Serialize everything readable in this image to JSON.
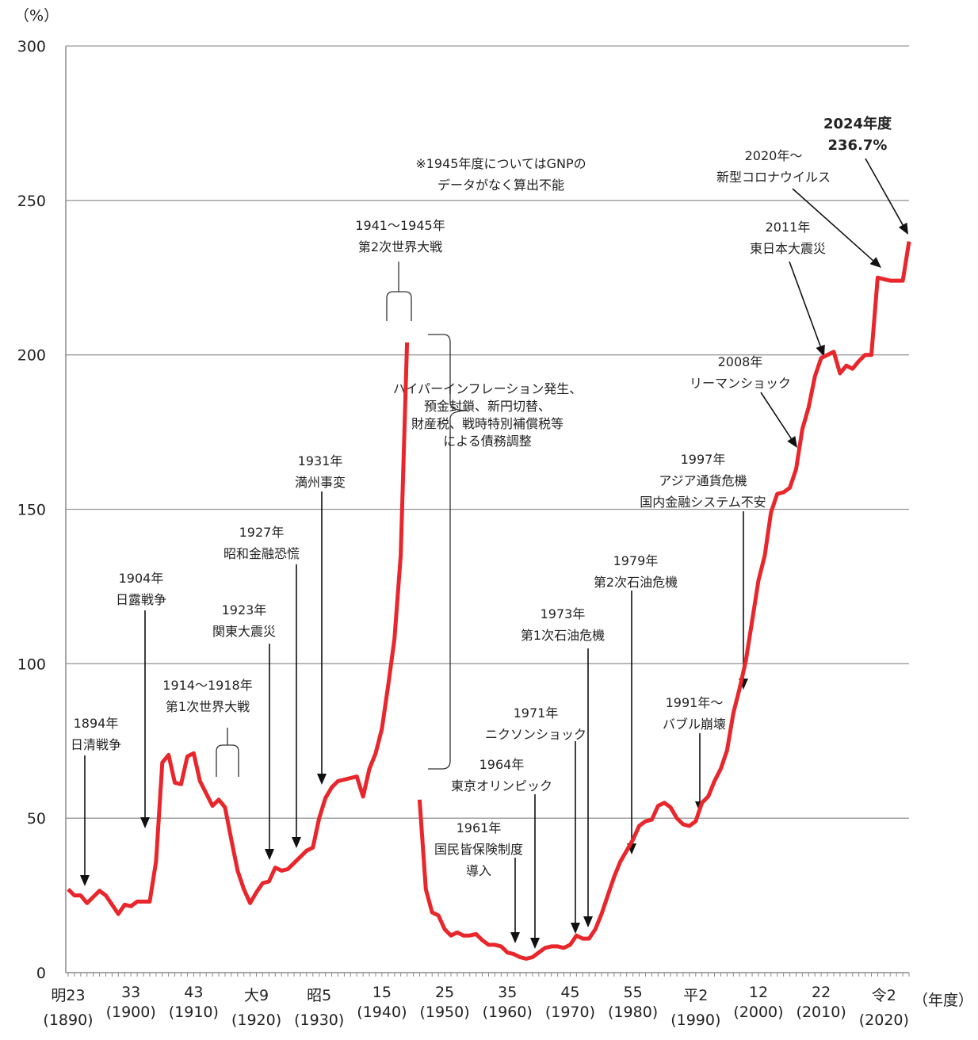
{
  "chart_data": {
    "type": "line",
    "ylabel": "（%）",
    "xlabel": "（年度）",
    "ylim": [
      0,
      300
    ],
    "yticks": [
      0,
      50,
      100,
      150,
      200,
      250,
      300
    ],
    "xlim": [
      1890,
      2024
    ],
    "grid": true,
    "line_color": "#e8262b",
    "x_tick_labels": [
      {
        "year": 1890,
        "era": "明23",
        "western": "(1890)"
      },
      {
        "year": 1900,
        "era": "33",
        "western": "(1900)"
      },
      {
        "year": 1910,
        "era": "43",
        "western": "(1910)"
      },
      {
        "year": 1920,
        "era": "大9",
        "western": "(1920)"
      },
      {
        "year": 1930,
        "era": "昭5",
        "western": "(1930)"
      },
      {
        "year": 1940,
        "era": "15",
        "western": "(1940)"
      },
      {
        "year": 1950,
        "era": "25",
        "western": "(1950)"
      },
      {
        "year": 1960,
        "era": "35",
        "western": "(1960)"
      },
      {
        "year": 1970,
        "era": "45",
        "western": "(1970)"
      },
      {
        "year": 1980,
        "era": "55",
        "western": "(1980)"
      },
      {
        "year": 1990,
        "era": "平2",
        "western": "(1990)"
      },
      {
        "year": 2000,
        "era": "12",
        "western": "(2000)"
      },
      {
        "year": 2010,
        "era": "22",
        "western": "(2010)"
      },
      {
        "year": 2020,
        "era": "令2",
        "western": "(2020)"
      }
    ],
    "series": [
      {
        "segments": [
          {
            "x": [
              1890,
              1891,
              1892,
              1893,
              1894,
              1895,
              1896,
              1897,
              1898,
              1899,
              1900,
              1901,
              1902,
              1903,
              1904,
              1905,
              1906,
              1907,
              1908,
              1909,
              1910,
              1911,
              1912,
              1913,
              1914,
              1915,
              1916,
              1917,
              1918,
              1919,
              1920,
              1921,
              1922,
              1923,
              1924,
              1925,
              1926,
              1927,
              1928,
              1929,
              1930,
              1931,
              1932,
              1933,
              1934,
              1935,
              1936,
              1937,
              1938,
              1939,
              1940,
              1941,
              1942,
              1943,
              1944
            ],
            "y": [
              27,
              25,
              25,
              22.5,
              24.5,
              26.5,
              25,
              22,
              19,
              22,
              21.5,
              23,
              23,
              23,
              36,
              68,
              70.5,
              61.5,
              61,
              70,
              71,
              62,
              58,
              54,
              56,
              53.5,
              43,
              33,
              27,
              22.5,
              26,
              29,
              29.5,
              34,
              33,
              33.5,
              35.5,
              37.5,
              39.5,
              40.5,
              50,
              56.5,
              60,
              62,
              62.5,
              63,
              63.5,
              57,
              66,
              71,
              79,
              93,
              108,
              135,
              204
            ]
          },
          {
            "x": [
              1946,
              1947,
              1948,
              1949,
              1950,
              1951,
              1952,
              1953,
              1954,
              1955,
              1956,
              1957,
              1958,
              1959,
              1960,
              1961,
              1962,
              1963,
              1964,
              1965,
              1966,
              1967,
              1968,
              1969,
              1970,
              1971,
              1972,
              1973,
              1974,
              1975,
              1976,
              1977,
              1978,
              1979,
              1980,
              1981,
              1982,
              1983,
              1984,
              1985,
              1986,
              1987,
              1988,
              1989,
              1990,
              1991,
              1992,
              1993,
              1994,
              1995,
              1996,
              1997,
              1998,
              1999,
              2000,
              2001,
              2002,
              2003,
              2004,
              2005,
              2006,
              2007,
              2008,
              2009,
              2010,
              2011,
              2012,
              2013,
              2014,
              2015,
              2016,
              2017,
              2018,
              2019,
              2020,
              2021,
              2022,
              2023,
              2024
            ],
            "y": [
              56,
              27,
              19.5,
              18.5,
              14,
              12,
              13,
              12,
              12,
              12.5,
              10.5,
              9,
              9,
              8.5,
              6.5,
              6,
              5,
              4.5,
              5,
              6.5,
              8,
              8.5,
              8.5,
              8,
              9,
              12,
              11,
              11,
              14,
              19,
              25,
              31,
              36,
              39.5,
              43,
              47.5,
              49,
              49.5,
              54,
              55,
              53.5,
              50,
              48,
              47.5,
              49,
              55,
              57,
              62,
              66,
              72,
              84,
              92,
              101,
              114,
              127,
              135,
              149,
              155,
              155.5,
              157,
              163,
              176,
              183,
              193,
              199,
              200,
              201,
              194,
              196.5,
              195.5,
              198,
              200,
              200,
              225,
              224.5,
              224,
              224,
              224,
              236.7
            ]
          }
        ]
      }
    ],
    "annotations": [
      {
        "lines": [
          "1894年",
          "日清戦争"
        ]
      },
      {
        "lines": [
          "1904年",
          "日露戦争"
        ]
      },
      {
        "lines": [
          "1914～1918年",
          "第1次世界大戦"
        ]
      },
      {
        "lines": [
          "1923年",
          "関東大震災"
        ]
      },
      {
        "lines": [
          "1927年",
          "昭和金融恐慌"
        ]
      },
      {
        "lines": [
          "1931年",
          "満州事変"
        ]
      },
      {
        "lines": [
          "1941～1945年",
          "第2次世界大戦"
        ]
      },
      {
        "lines": [
          "※1945年度についてはGNPの",
          "データがなく算出不能"
        ]
      },
      {
        "lines": [
          "ハイパーインフレーション発生、",
          "預金封鎖、新円切替、",
          "財産税、戦時特別補償税等",
          "による債務調整"
        ]
      },
      {
        "lines": [
          "1961年",
          "国民皆保険制度",
          "導入"
        ]
      },
      {
        "lines": [
          "1964年",
          "東京オリンピック"
        ]
      },
      {
        "lines": [
          "1971年",
          "ニクソンショック"
        ]
      },
      {
        "lines": [
          "1973年",
          "第1次石油危機"
        ]
      },
      {
        "lines": [
          "1979年",
          "第2次石油危機"
        ]
      },
      {
        "lines": [
          "1991年～",
          "バブル崩壊"
        ]
      },
      {
        "lines": [
          "1997年",
          "アジア通貨危機",
          "国内金融システム不安"
        ]
      },
      {
        "lines": [
          "2008年",
          "リーマンショック"
        ]
      },
      {
        "lines": [
          "2011年",
          "東日本大震災"
        ]
      },
      {
        "lines": [
          "2020年～",
          "新型コロナウイルス"
        ]
      },
      {
        "lines": [
          "2024年度",
          "236.7%"
        ],
        "bold": true
      }
    ]
  }
}
